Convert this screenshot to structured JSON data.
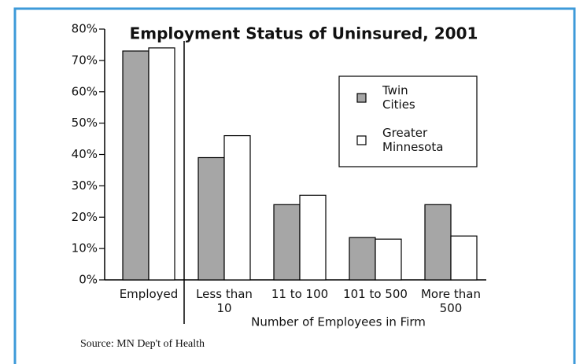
{
  "chart_data": {
    "type": "bar",
    "title": "Employment Status of Uninsured, 2001",
    "x_label": "Number of Employees in Firm",
    "source": "Source: MN Dep't of Health",
    "categories": [
      "Employed",
      "Less than 10",
      "11 to 100",
      "101 to 500",
      "More than 500"
    ],
    "series": [
      {
        "name": "Twin Cities",
        "color": "#a6a6a6",
        "values": [
          73,
          39,
          24,
          13.5,
          24
        ]
      },
      {
        "name": "Greater Minnesota",
        "color": "#ffffff",
        "values": [
          74,
          46,
          27,
          13,
          14
        ]
      }
    ],
    "ylim": [
      0,
      80
    ],
    "yticks": [
      {
        "value": 0,
        "label": "0%"
      },
      {
        "value": 10,
        "label": "10%"
      },
      {
        "value": 20,
        "label": "20%"
      },
      {
        "value": 30,
        "label": "30%"
      },
      {
        "value": 40,
        "label": "40%"
      },
      {
        "value": 50,
        "label": "50%"
      },
      {
        "value": 60,
        "label": "60%"
      },
      {
        "value": 70,
        "label": "70%"
      },
      {
        "value": 80,
        "label": "80%"
      }
    ],
    "legend": "upper right"
  }
}
